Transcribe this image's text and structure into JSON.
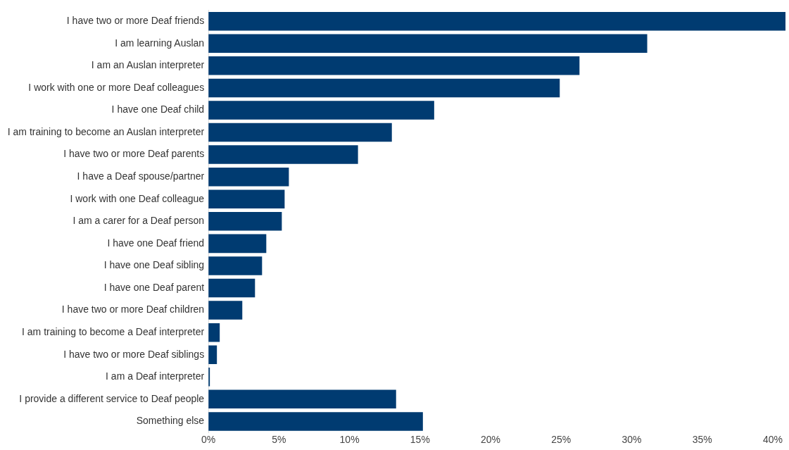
{
  "chart_data": {
    "type": "bar",
    "orientation": "horizontal",
    "categories": [
      "I have two or more Deaf friends",
      "I am learning Auslan",
      "I am an Auslan interpreter",
      "I work with one or more Deaf colleagues",
      "I have one Deaf child",
      "I am training to become an Auslan interpreter",
      "I have two or more Deaf parents",
      "I have a Deaf spouse/partner",
      "I work with one Deaf colleague",
      "I am a carer for a Deaf person",
      "I have one Deaf friend",
      "I have one Deaf sibling",
      "I have one Deaf parent",
      "I have two or more Deaf children",
      "I am training to become a Deaf interpreter",
      "I have two or more Deaf siblings",
      "I am a Deaf interpreter",
      "I provide a different service to Deaf people",
      "Something else"
    ],
    "values": [
      40.9,
      31.1,
      26.3,
      24.9,
      16.0,
      13.0,
      10.6,
      5.7,
      5.4,
      5.2,
      4.1,
      3.8,
      3.3,
      2.4,
      0.8,
      0.6,
      0.1,
      13.3,
      15.2
    ],
    "color": "#003b71",
    "xlim": [
      0,
      41
    ],
    "xticks": [
      {
        "value": 0,
        "label": "0%"
      },
      {
        "value": 5,
        "label": "5%"
      },
      {
        "value": 10,
        "label": "10%"
      },
      {
        "value": 15,
        "label": "15%"
      },
      {
        "value": 20,
        "label": "20%"
      },
      {
        "value": 25,
        "label": "25%"
      },
      {
        "value": 30,
        "label": "30%"
      },
      {
        "value": 35,
        "label": "35%"
      },
      {
        "value": 40,
        "label": "40%"
      }
    ],
    "grid": false,
    "legend": false
  }
}
